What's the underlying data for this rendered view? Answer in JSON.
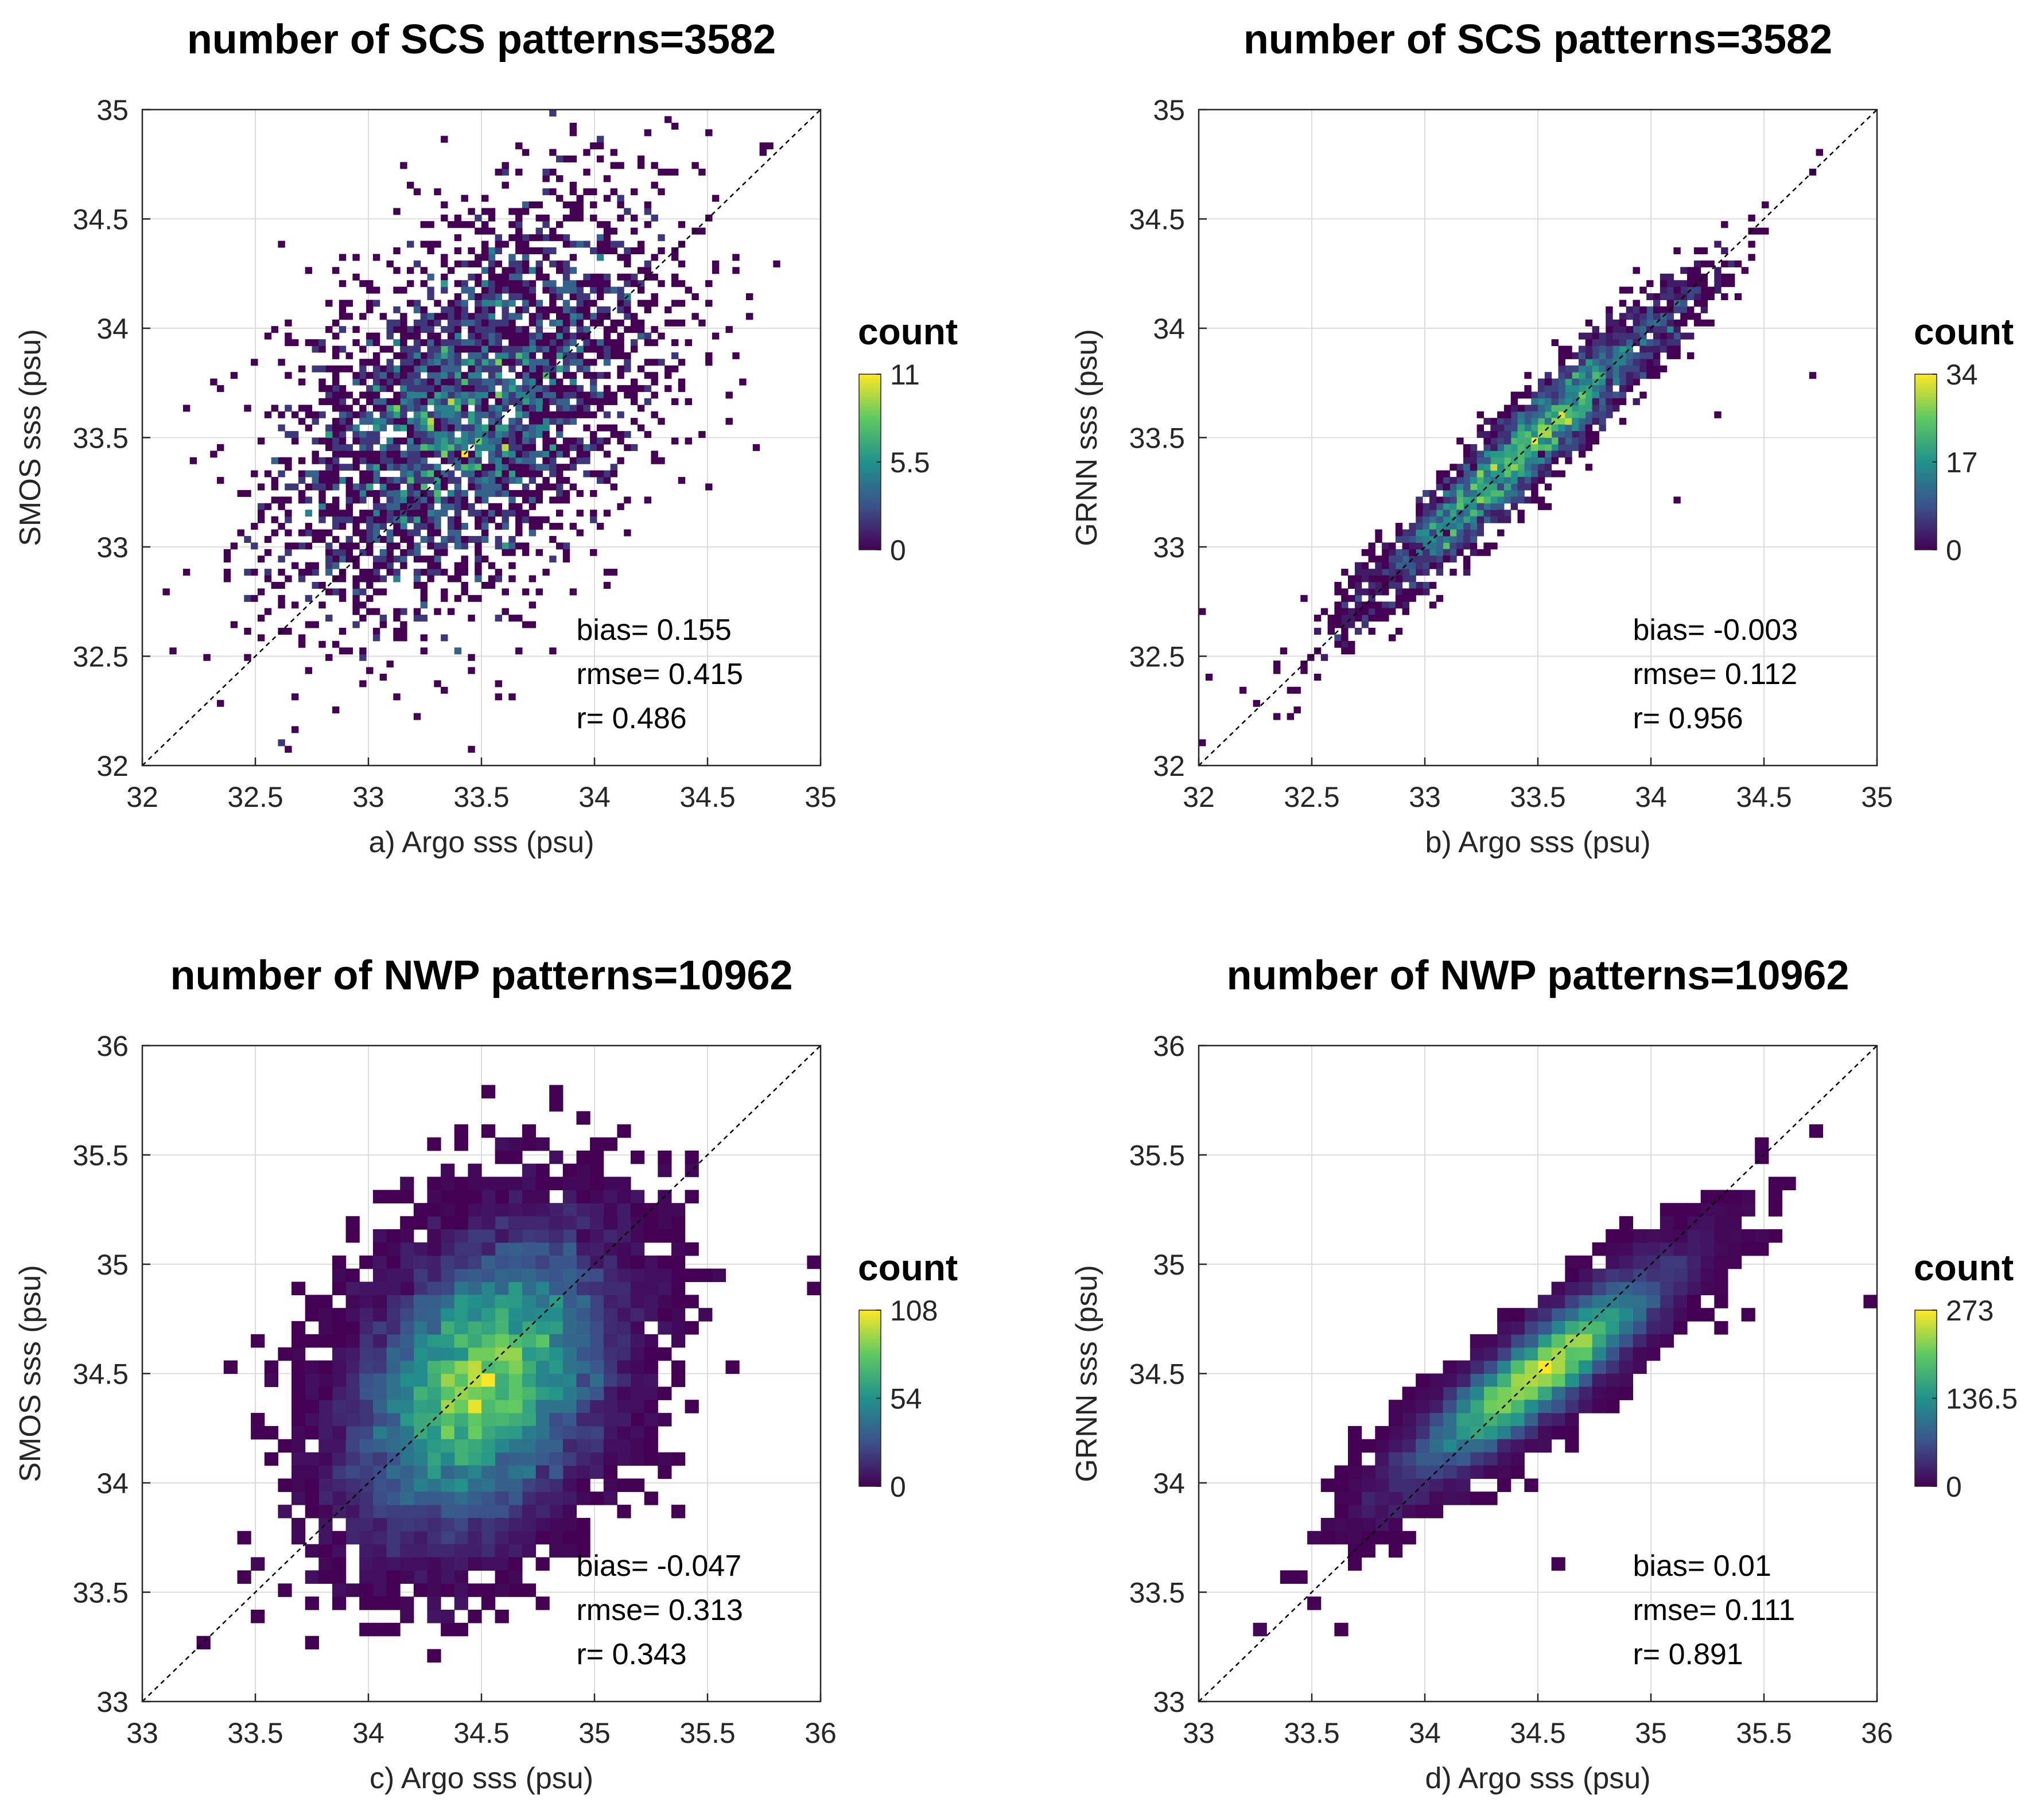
{
  "chart_data": [
    {
      "type": "heatmap",
      "panel": "a",
      "title": "number of SCS patterns=3582",
      "xlabel": "a) Argo sss (psu)",
      "ylabel": "SMOS  sss (psu)",
      "xlim": [
        32,
        35
      ],
      "ylim": [
        32,
        35
      ],
      "xticks": [
        32,
        32.5,
        33,
        33.5,
        34,
        34.5,
        35
      ],
      "yticks": [
        32,
        32.5,
        33,
        33.5,
        34,
        34.5,
        35
      ],
      "tick_labels": [
        "32",
        "32.5",
        "33",
        "33.5",
        "34",
        "34.5",
        "35"
      ],
      "colorbar": {
        "title": "count",
        "max": 11,
        "ticks": [
          "11",
          "5.5",
          "0"
        ]
      },
      "stats": {
        "bias": "bias= 0.155",
        "rmse": "rmse= 0.415",
        "r": "r= 0.486"
      },
      "distribution": {
        "cx": 33.45,
        "cy": 33.62,
        "sx": 0.42,
        "sy": 0.45,
        "corr": 0.45,
        "peak": 11,
        "bin": 0.03,
        "n": 3582,
        "outliers": [
          [
            34.5,
            34.9
          ],
          [
            33.8,
            35.0
          ],
          [
            34.1,
            33.9
          ],
          [
            34.4,
            33.3
          ],
          [
            32.2,
            32.9
          ],
          [
            32.6,
            32.1
          ],
          [
            34.8,
            34.3
          ]
        ]
      }
    },
    {
      "type": "heatmap",
      "panel": "b",
      "title": "number of SCS patterns=3582",
      "xlabel": "b) Argo sss (psu)",
      "ylabel": "GRNN sss (psu)",
      "xlim": [
        32,
        35
      ],
      "ylim": [
        32,
        35
      ],
      "xticks": [
        32,
        32.5,
        33,
        33.5,
        34,
        34.5,
        35
      ],
      "yticks": [
        32,
        32.5,
        33,
        33.5,
        34,
        34.5,
        35
      ],
      "tick_labels": [
        "32",
        "32.5",
        "33",
        "33.5",
        "34",
        "34.5",
        "35"
      ],
      "colorbar": {
        "title": "count",
        "max": 34,
        "ticks": [
          "34",
          "17",
          "0"
        ]
      },
      "stats": {
        "bias": "bias= -0.003",
        "rmse": "rmse= 0.112",
        "r": "r= 0.956"
      },
      "distribution": {
        "cx": 33.45,
        "cy": 33.45,
        "sx": 0.36,
        "sy": 0.36,
        "corr": 0.955,
        "peak": 34,
        "bin": 0.03,
        "n": 3582,
        "outliers": [
          [
            34.7,
            34.7
          ],
          [
            34.45,
            34.5
          ],
          [
            32.0,
            32.7
          ],
          [
            32.05,
            32.4
          ],
          [
            34.3,
            33.6
          ],
          [
            34.7,
            33.8
          ],
          [
            34.1,
            33.2
          ]
        ]
      }
    },
    {
      "type": "heatmap",
      "panel": "c",
      "title": "number of NWP patterns=10962",
      "xlabel": "c) Argo sss (psu)",
      "ylabel": "SMOS sss (psu)",
      "xlim": [
        33,
        36
      ],
      "ylim": [
        33,
        36
      ],
      "xticks": [
        33,
        33.5,
        34,
        34.5,
        35,
        35.5,
        36
      ],
      "yticks": [
        33,
        33.5,
        34,
        34.5,
        35,
        35.5,
        36
      ],
      "tick_labels": [
        "33",
        "33.5",
        "34",
        "34.5",
        "35",
        "35.5",
        "36"
      ],
      "colorbar": {
        "title": "count",
        "max": 108,
        "ticks": [
          "108",
          "54",
          "0"
        ]
      },
      "stats": {
        "bias": "bias= -0.047",
        "rmse": "rmse= 0.313",
        "r": "r= 0.343"
      },
      "distribution": {
        "cx": 34.5,
        "cy": 34.45,
        "sx": 0.3,
        "sy": 0.36,
        "corr": 0.34,
        "peak": 108,
        "bin": 0.06,
        "n": 10962,
        "outliers": [
          [
            35.95,
            35.0
          ],
          [
            35.95,
            34.9
          ],
          [
            35.5,
            34.8
          ],
          [
            35.3,
            34.95
          ],
          [
            33.25,
            33.25
          ],
          [
            33.4,
            34.55
          ],
          [
            34.55,
            35.77
          ],
          [
            34.4,
            35.6
          ]
        ]
      }
    },
    {
      "type": "heatmap",
      "panel": "d",
      "title": "number of NWP patterns=10962",
      "xlabel": "d) Argo sss (psu)",
      "ylabel": "GRNN sss (psu)",
      "xlim": [
        33,
        36
      ],
      "ylim": [
        33,
        36
      ],
      "xticks": [
        33,
        33.5,
        34,
        34.5,
        35,
        35.5,
        36
      ],
      "yticks": [
        33,
        33.5,
        34,
        34.5,
        35,
        35.5,
        36
      ],
      "tick_labels": [
        "33",
        "33.5",
        "34",
        "34.5",
        "35",
        "35.5",
        "36"
      ],
      "colorbar": {
        "title": "count",
        "max": 273,
        "ticks": [
          "273",
          "136.5",
          "0"
        ]
      },
      "stats": {
        "bias": "bias= 0.01",
        "rmse": "rmse= 0.111",
        "r": "r= 0.891"
      },
      "distribution": {
        "cx": 34.5,
        "cy": 34.5,
        "sx": 0.3,
        "sy": 0.25,
        "corr": 0.89,
        "peak": 273,
        "bin": 0.06,
        "n": 10962,
        "outliers": [
          [
            35.95,
            34.85
          ],
          [
            35.45,
            34.8
          ],
          [
            35.3,
            34.7
          ],
          [
            33.25,
            33.35
          ],
          [
            33.3,
            33.35
          ],
          [
            33.6,
            33.35
          ],
          [
            34.6,
            33.65
          ]
        ]
      }
    }
  ],
  "colormap": [
    "#440154",
    "#3b528b",
    "#21918c",
    "#5ec962",
    "#fde725"
  ],
  "axis_color": "#262626",
  "grid_color": "#dcdcdc"
}
